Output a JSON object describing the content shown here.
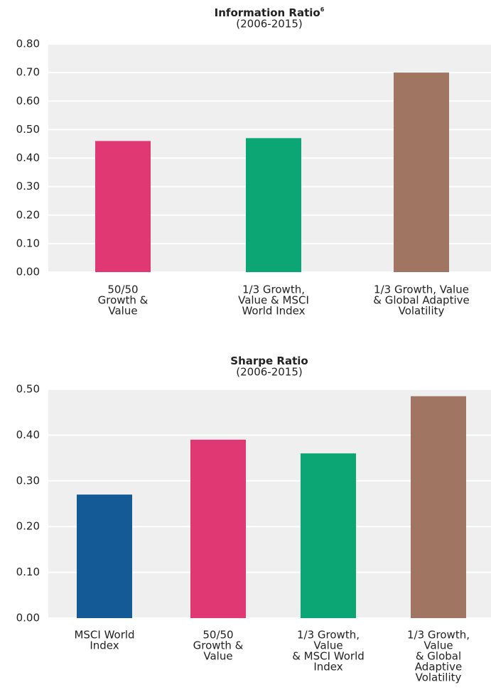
{
  "chart_data": [
    {
      "type": "bar",
      "title": "Information Ratio",
      "title_footnote": "6",
      "subtitle": "(2006-2015)",
      "categories": [
        [
          "50/50",
          "Growth &",
          "Value"
        ],
        [
          "1/3 Growth,",
          "Value & MSCI",
          "World Index"
        ],
        [
          "1/3 Growth, Value",
          "& Global Adaptive",
          "Volatility"
        ]
      ],
      "values": [
        0.46,
        0.47,
        0.7
      ],
      "colors": [
        "#e03873",
        "#0ca574",
        "#a07662"
      ],
      "ylim": [
        0,
        0.8
      ],
      "yticks": [
        {
          "value": 0,
          "label": "0.00"
        },
        {
          "value": 0.1,
          "label": "0.10"
        },
        {
          "value": 0.2,
          "label": "0.20"
        },
        {
          "value": 0.3,
          "label": "0.30"
        },
        {
          "value": 0.4,
          "label": "0.40"
        },
        {
          "value": 0.5,
          "label": "0.50"
        },
        {
          "value": 0.6,
          "label": "0.60"
        },
        {
          "value": 0.7,
          "label": "0.70"
        },
        {
          "value": 0.8,
          "label": "0.80"
        }
      ],
      "grid": true
    },
    {
      "type": "bar",
      "title": "Sharpe Ratio",
      "subtitle": "(2006-2015)",
      "categories": [
        [
          "MSCI World",
          "Index"
        ],
        [
          "50/50",
          "Growth &",
          "Value"
        ],
        [
          "1/3 Growth,",
          "Value",
          "& MSCI World",
          "Index"
        ],
        [
          "1/3 Growth,",
          "Value",
          "& Global",
          "Adaptive",
          "Volatility"
        ]
      ],
      "values": [
        0.27,
        0.39,
        0.36,
        0.485
      ],
      "colors": [
        "#135a96",
        "#e03873",
        "#0ca574",
        "#a07662"
      ],
      "ylim": [
        0,
        0.5
      ],
      "yticks": [
        {
          "value": 0,
          "label": "0.00"
        },
        {
          "value": 0.1,
          "label": "0.10"
        },
        {
          "value": 0.2,
          "label": "0.20"
        },
        {
          "value": 0.3,
          "label": "0.30"
        },
        {
          "value": 0.4,
          "label": "0.40"
        },
        {
          "value": 0.5,
          "label": "0.50"
        }
      ],
      "grid": true
    }
  ]
}
